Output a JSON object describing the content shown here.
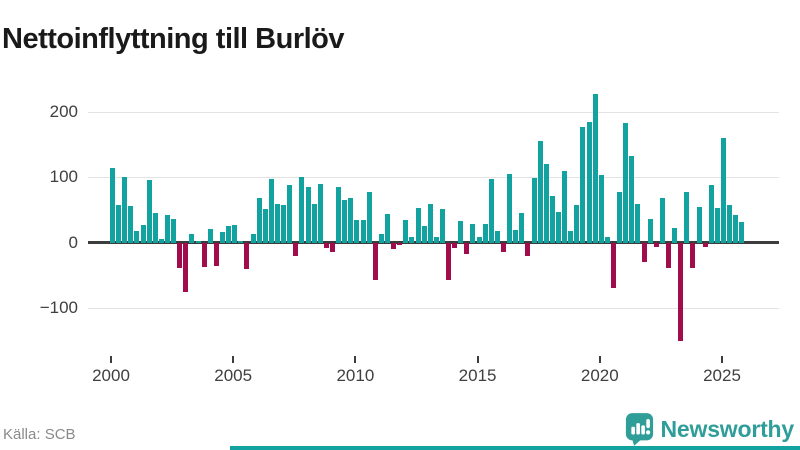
{
  "title": "Nettoinflyttning till Burlöv",
  "source": "Källa: SCB",
  "brand": {
    "name": "Newsworthy"
  },
  "colors": {
    "positive": "#12a2a0",
    "negative": "#a00c4c",
    "axis": "#3d3d3d",
    "grid": "#e3e3e3",
    "tick_text": "#404040",
    "title_text": "#1a1a1a",
    "source_text": "#8a8a8a",
    "brand_teal": "#2f9e99"
  },
  "chart_data": {
    "type": "bar",
    "title": "Nettoinflyttning till Burlöv",
    "frequency": "quarterly",
    "start_year": 2000,
    "start_quarter": 1,
    "ylim": [
      -160,
      240
    ],
    "y_ticks": [
      200,
      100,
      0,
      -100
    ],
    "x_ticks": [
      2000,
      2005,
      2010,
      2015,
      2020,
      2025
    ],
    "grid": true,
    "legend": "none",
    "series": [
      {
        "name": "Nettoinflyttning",
        "values": [
          115,
          57,
          100,
          56,
          18,
          27,
          96,
          46,
          5,
          43,
          37,
          -39,
          -75,
          14,
          2,
          -37,
          21,
          -36,
          17,
          26,
          27,
          3,
          -41,
          14,
          69,
          52,
          98,
          60,
          58,
          89,
          -21,
          100,
          85,
          59,
          90,
          -8,
          -15,
          85,
          65,
          69,
          34,
          34,
          78,
          -57,
          13,
          44,
          -9,
          -4,
          35,
          9,
          53,
          26,
          60,
          9,
          52,
          -57,
          -8,
          33,
          -18,
          28,
          8,
          29,
          97,
          18,
          -14,
          105,
          20,
          46,
          -20,
          99,
          155,
          121,
          71,
          47,
          110,
          18,
          57,
          177,
          184,
          228,
          104,
          9,
          -69,
          78,
          183,
          133,
          59,
          -29,
          37,
          -6,
          69,
          -38,
          22,
          -150,
          78,
          -39,
          55,
          -6,
          89,
          53,
          161,
          58,
          43,
          32
        ]
      }
    ]
  }
}
